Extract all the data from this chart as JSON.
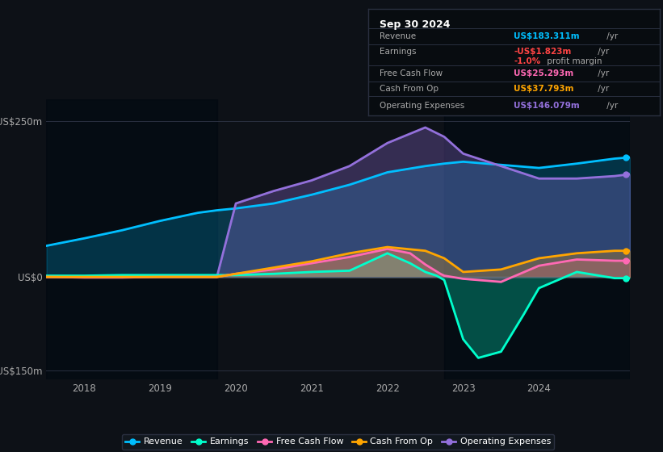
{
  "background_color": "#0d1117",
  "chart_bg_color": "#0d1117",
  "xlim": [
    2017.5,
    2025.2
  ],
  "ylim": [
    -165,
    285
  ],
  "yticks": [
    -150,
    0,
    250
  ],
  "ytick_labels": [
    "-US$150m",
    "US$0",
    "US$250m"
  ],
  "xtick_labels": [
    "2018",
    "2019",
    "2020",
    "2021",
    "2022",
    "2023",
    "2024"
  ],
  "xtick_values": [
    2018,
    2019,
    2020,
    2021,
    2022,
    2023,
    2024
  ],
  "revenue_color": "#00bfff",
  "earnings_color": "#00ffcc",
  "fcf_color": "#ff69b4",
  "cashop_color": "#ffa500",
  "opex_color": "#9370db",
  "legend_bg": "#12181f",
  "legend_border": "#2a3040",
  "info_box_bg": "#080c10",
  "info_box_border": "#2a3040",
  "shade1_start": 2017.5,
  "shade1_end": 2019.75,
  "shade2_start": 2022.75,
  "shade2_end": 2025.2,
  "revenue_x": [
    2017.5,
    2018.0,
    2018.5,
    2019.0,
    2019.5,
    2019.75,
    2020.0,
    2020.5,
    2021.0,
    2021.5,
    2022.0,
    2022.5,
    2022.75,
    2023.0,
    2023.5,
    2024.0,
    2024.5,
    2025.0,
    2025.2
  ],
  "revenue_y": [
    50,
    62,
    75,
    90,
    103,
    107,
    110,
    118,
    132,
    148,
    168,
    178,
    182,
    185,
    180,
    175,
    182,
    190,
    192
  ],
  "opex_x": [
    2017.5,
    2018.0,
    2018.5,
    2019.0,
    2019.5,
    2019.75,
    2020.0,
    2020.5,
    2021.0,
    2021.5,
    2022.0,
    2022.5,
    2022.75,
    2023.0,
    2023.5,
    2024.0,
    2024.5,
    2025.0,
    2025.2
  ],
  "opex_y": [
    0,
    0,
    0,
    0,
    0,
    0,
    118,
    138,
    155,
    178,
    215,
    240,
    225,
    198,
    178,
    158,
    158,
    162,
    165
  ],
  "earnings_x": [
    2017.5,
    2018.0,
    2018.5,
    2019.0,
    2019.5,
    2019.75,
    2020.0,
    2020.5,
    2021.0,
    2021.5,
    2022.0,
    2022.3,
    2022.5,
    2022.65,
    2022.75,
    2023.0,
    2023.2,
    2023.5,
    2023.8,
    2024.0,
    2024.5,
    2025.0,
    2025.2
  ],
  "earnings_y": [
    2,
    2,
    3,
    3,
    3,
    3,
    3,
    5,
    8,
    10,
    38,
    22,
    8,
    2,
    -5,
    -100,
    -130,
    -120,
    -60,
    -18,
    8,
    -2,
    -2
  ],
  "fcf_x": [
    2017.5,
    2018.0,
    2018.5,
    2019.0,
    2019.5,
    2019.75,
    2020.0,
    2020.5,
    2021.0,
    2021.5,
    2022.0,
    2022.3,
    2022.5,
    2022.7,
    2022.75,
    2023.0,
    2023.5,
    2024.0,
    2024.5,
    2025.0,
    2025.2
  ],
  "fcf_y": [
    0,
    -1,
    -1,
    0,
    0,
    0,
    5,
    12,
    22,
    32,
    45,
    38,
    20,
    5,
    2,
    -3,
    -8,
    18,
    28,
    26,
    26
  ],
  "cashop_x": [
    2017.5,
    2018.0,
    2018.5,
    2019.0,
    2019.5,
    2019.75,
    2020.0,
    2020.5,
    2021.0,
    2021.5,
    2022.0,
    2022.5,
    2022.75,
    2023.0,
    2023.5,
    2024.0,
    2024.5,
    2025.0,
    2025.2
  ],
  "cashop_y": [
    0,
    0,
    0,
    0,
    0,
    0,
    5,
    15,
    25,
    38,
    48,
    42,
    30,
    8,
    12,
    30,
    38,
    42,
    42
  ],
  "info_title": "Sep 30 2024",
  "info_rows": [
    {
      "label": "Revenue",
      "value": "US$183.311m /yr",
      "color": "#00bfff"
    },
    {
      "label": "Earnings",
      "value": "-US$1.823m /yr",
      "color": "#ff4444"
    },
    {
      "label": "",
      "value": "-1.0% profit margin",
      "color": "#ff4444",
      "mixed": true
    },
    {
      "label": "Free Cash Flow",
      "value": "US$25.293m /yr",
      "color": "#ff69b4"
    },
    {
      "label": "Cash From Op",
      "value": "US$37.793m /yr",
      "color": "#ffa500"
    },
    {
      "label": "Operating Expenses",
      "value": "US$146.079m /yr",
      "color": "#9370db"
    }
  ],
  "legend_entries": [
    {
      "label": "Revenue",
      "color": "#00bfff"
    },
    {
      "label": "Earnings",
      "color": "#00ffcc"
    },
    {
      "label": "Free Cash Flow",
      "color": "#ff69b4"
    },
    {
      "label": "Cash From Op",
      "color": "#ffa500"
    },
    {
      "label": "Operating Expenses",
      "color": "#9370db"
    }
  ]
}
